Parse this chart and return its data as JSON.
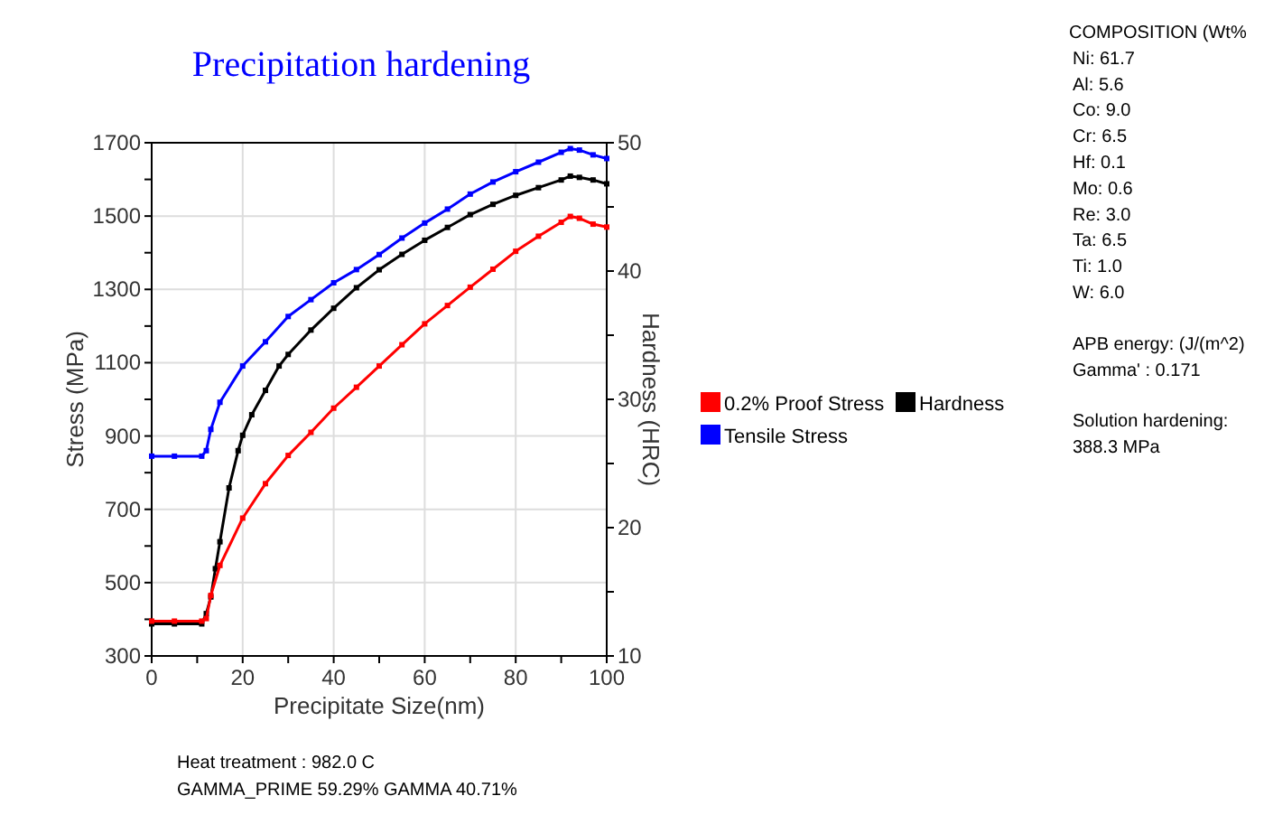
{
  "chart_data": {
    "type": "line",
    "title": "Precipitation hardening",
    "xlabel": "Precipitate Size(nm)",
    "ylabel": "Stress (MPa)",
    "y2label": "Hardness (HRC)",
    "xlim": [
      0,
      100
    ],
    "xticks": [
      0,
      {
        "value": 10,
        "label": null
      },
      20,
      {
        "value": 30,
        "label": null
      },
      40,
      {
        "value": 50,
        "label": null
      },
      60,
      {
        "value": 70,
        "label": null
      },
      80,
      {
        "value": 90,
        "label": null
      },
      100
    ],
    "ylim": [
      300,
      1700
    ],
    "yticks": [
      300,
      {
        "value": 400,
        "label": null
      },
      500,
      {
        "value": 600,
        "label": null
      },
      700,
      {
        "value": 800,
        "label": null
      },
      900,
      {
        "value": 1000,
        "label": null
      },
      1100,
      {
        "value": 1200,
        "label": null
      },
      1300,
      {
        "value": 1400,
        "label": null
      },
      1500,
      {
        "value": 1600,
        "label": null
      },
      1700
    ],
    "y2lim": [
      10,
      50
    ],
    "y2ticks": [
      10,
      {
        "value": 15,
        "label": null
      },
      20,
      {
        "value": 25,
        "label": null
      },
      30,
      {
        "value": 35,
        "label": null
      },
      40,
      {
        "value": 45,
        "label": null
      },
      50
    ],
    "grid": true,
    "legend": "right",
    "marker": "square",
    "line_style": "solid",
    "series": [
      {
        "name": "0.2% Proof Stress",
        "color": "#ff0000",
        "x": [
          0,
          5,
          11,
          12,
          13,
          15,
          20,
          25,
          30,
          35,
          40,
          45,
          50,
          55,
          60,
          65,
          70,
          75,
          80,
          85,
          90,
          92,
          94,
          97,
          100
        ],
        "values": [
          395,
          395,
          395,
          402,
          465,
          547,
          676,
          770,
          847,
          910,
          976,
          1033,
          1091,
          1149,
          1206,
          1256,
          1306,
          1355,
          1404,
          1445,
          1483,
          1499,
          1494,
          1478,
          1470
        ]
      },
      {
        "name": "Hardness",
        "color": "#000000",
        "axis": "y2",
        "x": [
          0,
          5,
          11,
          12,
          13,
          14,
          15,
          17,
          19,
          20,
          22,
          25,
          28,
          30,
          35,
          40,
          45,
          50,
          55,
          60,
          65,
          70,
          75,
          80,
          85,
          90,
          92,
          94,
          97,
          100
        ],
        "values": [
          12.5,
          12.5,
          12.5,
          13.3,
          14.6,
          16.8,
          18.9,
          23.1,
          26.0,
          27.2,
          28.8,
          30.7,
          32.6,
          33.5,
          35.4,
          37.1,
          38.7,
          40.1,
          41.3,
          42.4,
          43.4,
          44.4,
          45.2,
          45.9,
          46.5,
          47.1,
          47.4,
          47.3,
          47.1,
          46.8
        ]
      },
      {
        "name": "Tensile Stress",
        "color": "#0000ff",
        "x": [
          0,
          5,
          11,
          12,
          13,
          15,
          20,
          25,
          30,
          35,
          40,
          45,
          50,
          55,
          60,
          65,
          70,
          75,
          80,
          85,
          90,
          92,
          94,
          97,
          100
        ],
        "values": [
          845,
          845,
          845,
          860,
          918,
          992,
          1091,
          1157,
          1226,
          1272,
          1318,
          1354,
          1395,
          1440,
          1481,
          1519,
          1560,
          1593,
          1621,
          1647,
          1674,
          1684,
          1680,
          1667,
          1657
        ]
      }
    ],
    "annotations": [
      "COMPOSITION (Wt%",
      "Ni: 61.7",
      "Al: 5.6",
      "Co: 9.0",
      "Cr: 6.5",
      "Hf: 0.1",
      "Mo: 0.6",
      "Re: 3.0",
      "Ta: 6.5",
      "Ti: 1.0",
      "W: 6.0",
      "APB energy: (J/(m^2)",
      "Gamma' : 0.171",
      "Solution hardening:",
      "388.3 MPa",
      "Heat treatment : 982.0 C",
      "GAMMA_PRIME 59.29% GAMMA 40.71%"
    ]
  }
}
